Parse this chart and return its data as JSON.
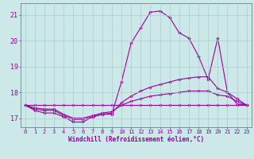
{
  "xlabel": "Windchill (Refroidissement éolien,°C)",
  "background_color": "#cce8e8",
  "line_color": "#990099",
  "grid_color": "#aacccc",
  "spine_color": "#668888",
  "xlim": [
    -0.5,
    23.5
  ],
  "ylim": [
    16.65,
    21.45
  ],
  "yticks": [
    17,
    18,
    19,
    20,
    21
  ],
  "xticks": [
    0,
    1,
    2,
    3,
    4,
    5,
    6,
    7,
    8,
    9,
    10,
    11,
    12,
    13,
    14,
    15,
    16,
    17,
    18,
    19,
    20,
    21,
    22,
    23
  ],
  "series": {
    "line1": [
      17.5,
      17.3,
      17.2,
      17.2,
      17.05,
      16.85,
      16.85,
      17.05,
      17.15,
      17.15,
      18.4,
      19.9,
      20.5,
      21.1,
      21.15,
      20.9,
      20.3,
      20.1,
      19.4,
      18.5,
      20.1,
      18.0,
      17.55,
      17.5
    ],
    "line2": [
      17.5,
      17.35,
      17.3,
      17.3,
      17.1,
      16.95,
      16.95,
      17.05,
      17.15,
      17.2,
      17.6,
      17.85,
      18.05,
      18.2,
      18.3,
      18.4,
      18.5,
      18.55,
      18.6,
      18.6,
      18.15,
      18.0,
      17.75,
      17.5
    ],
    "line3": [
      17.5,
      17.4,
      17.35,
      17.35,
      17.15,
      17.0,
      17.0,
      17.1,
      17.2,
      17.25,
      17.5,
      17.65,
      17.75,
      17.85,
      17.9,
      17.95,
      18.0,
      18.05,
      18.05,
      18.05,
      17.9,
      17.85,
      17.65,
      17.5
    ],
    "line4": [
      17.5,
      17.5,
      17.5,
      17.5,
      17.5,
      17.5,
      17.5,
      17.5,
      17.5,
      17.5,
      17.5,
      17.5,
      17.5,
      17.5,
      17.5,
      17.5,
      17.5,
      17.5,
      17.5,
      17.5,
      17.5,
      17.5,
      17.5,
      17.5
    ]
  }
}
